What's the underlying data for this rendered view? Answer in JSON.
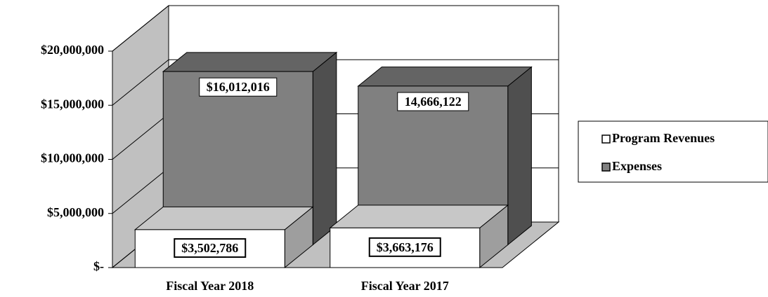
{
  "chart_data": {
    "type": "bar3d",
    "categories": [
      "Fiscal Year 2018",
      "Fiscal Year 2017"
    ],
    "series": [
      {
        "name": "Program Revenues",
        "color": "#ffffff",
        "values": [
          3502786,
          3663176
        ],
        "value_labels": [
          "$3,502,786",
          "$3,663,176"
        ]
      },
      {
        "name": "Expenses",
        "color": "#808080",
        "values": [
          16012016,
          14666122
        ],
        "value_labels": [
          "$16,012,016",
          "14,666,122"
        ]
      }
    ],
    "ylim": [
      0,
      20000000
    ],
    "yticks": [
      {
        "value": 0,
        "label": "$-"
      },
      {
        "value": 5000000,
        "label": "$5,000,000"
      },
      {
        "value": 10000000,
        "label": "$10,000,000"
      },
      {
        "value": 15000000,
        "label": "$15,000,000"
      },
      {
        "value": 20000000,
        "label": "$20,000,000"
      }
    ],
    "grid": true,
    "legend": "right"
  }
}
